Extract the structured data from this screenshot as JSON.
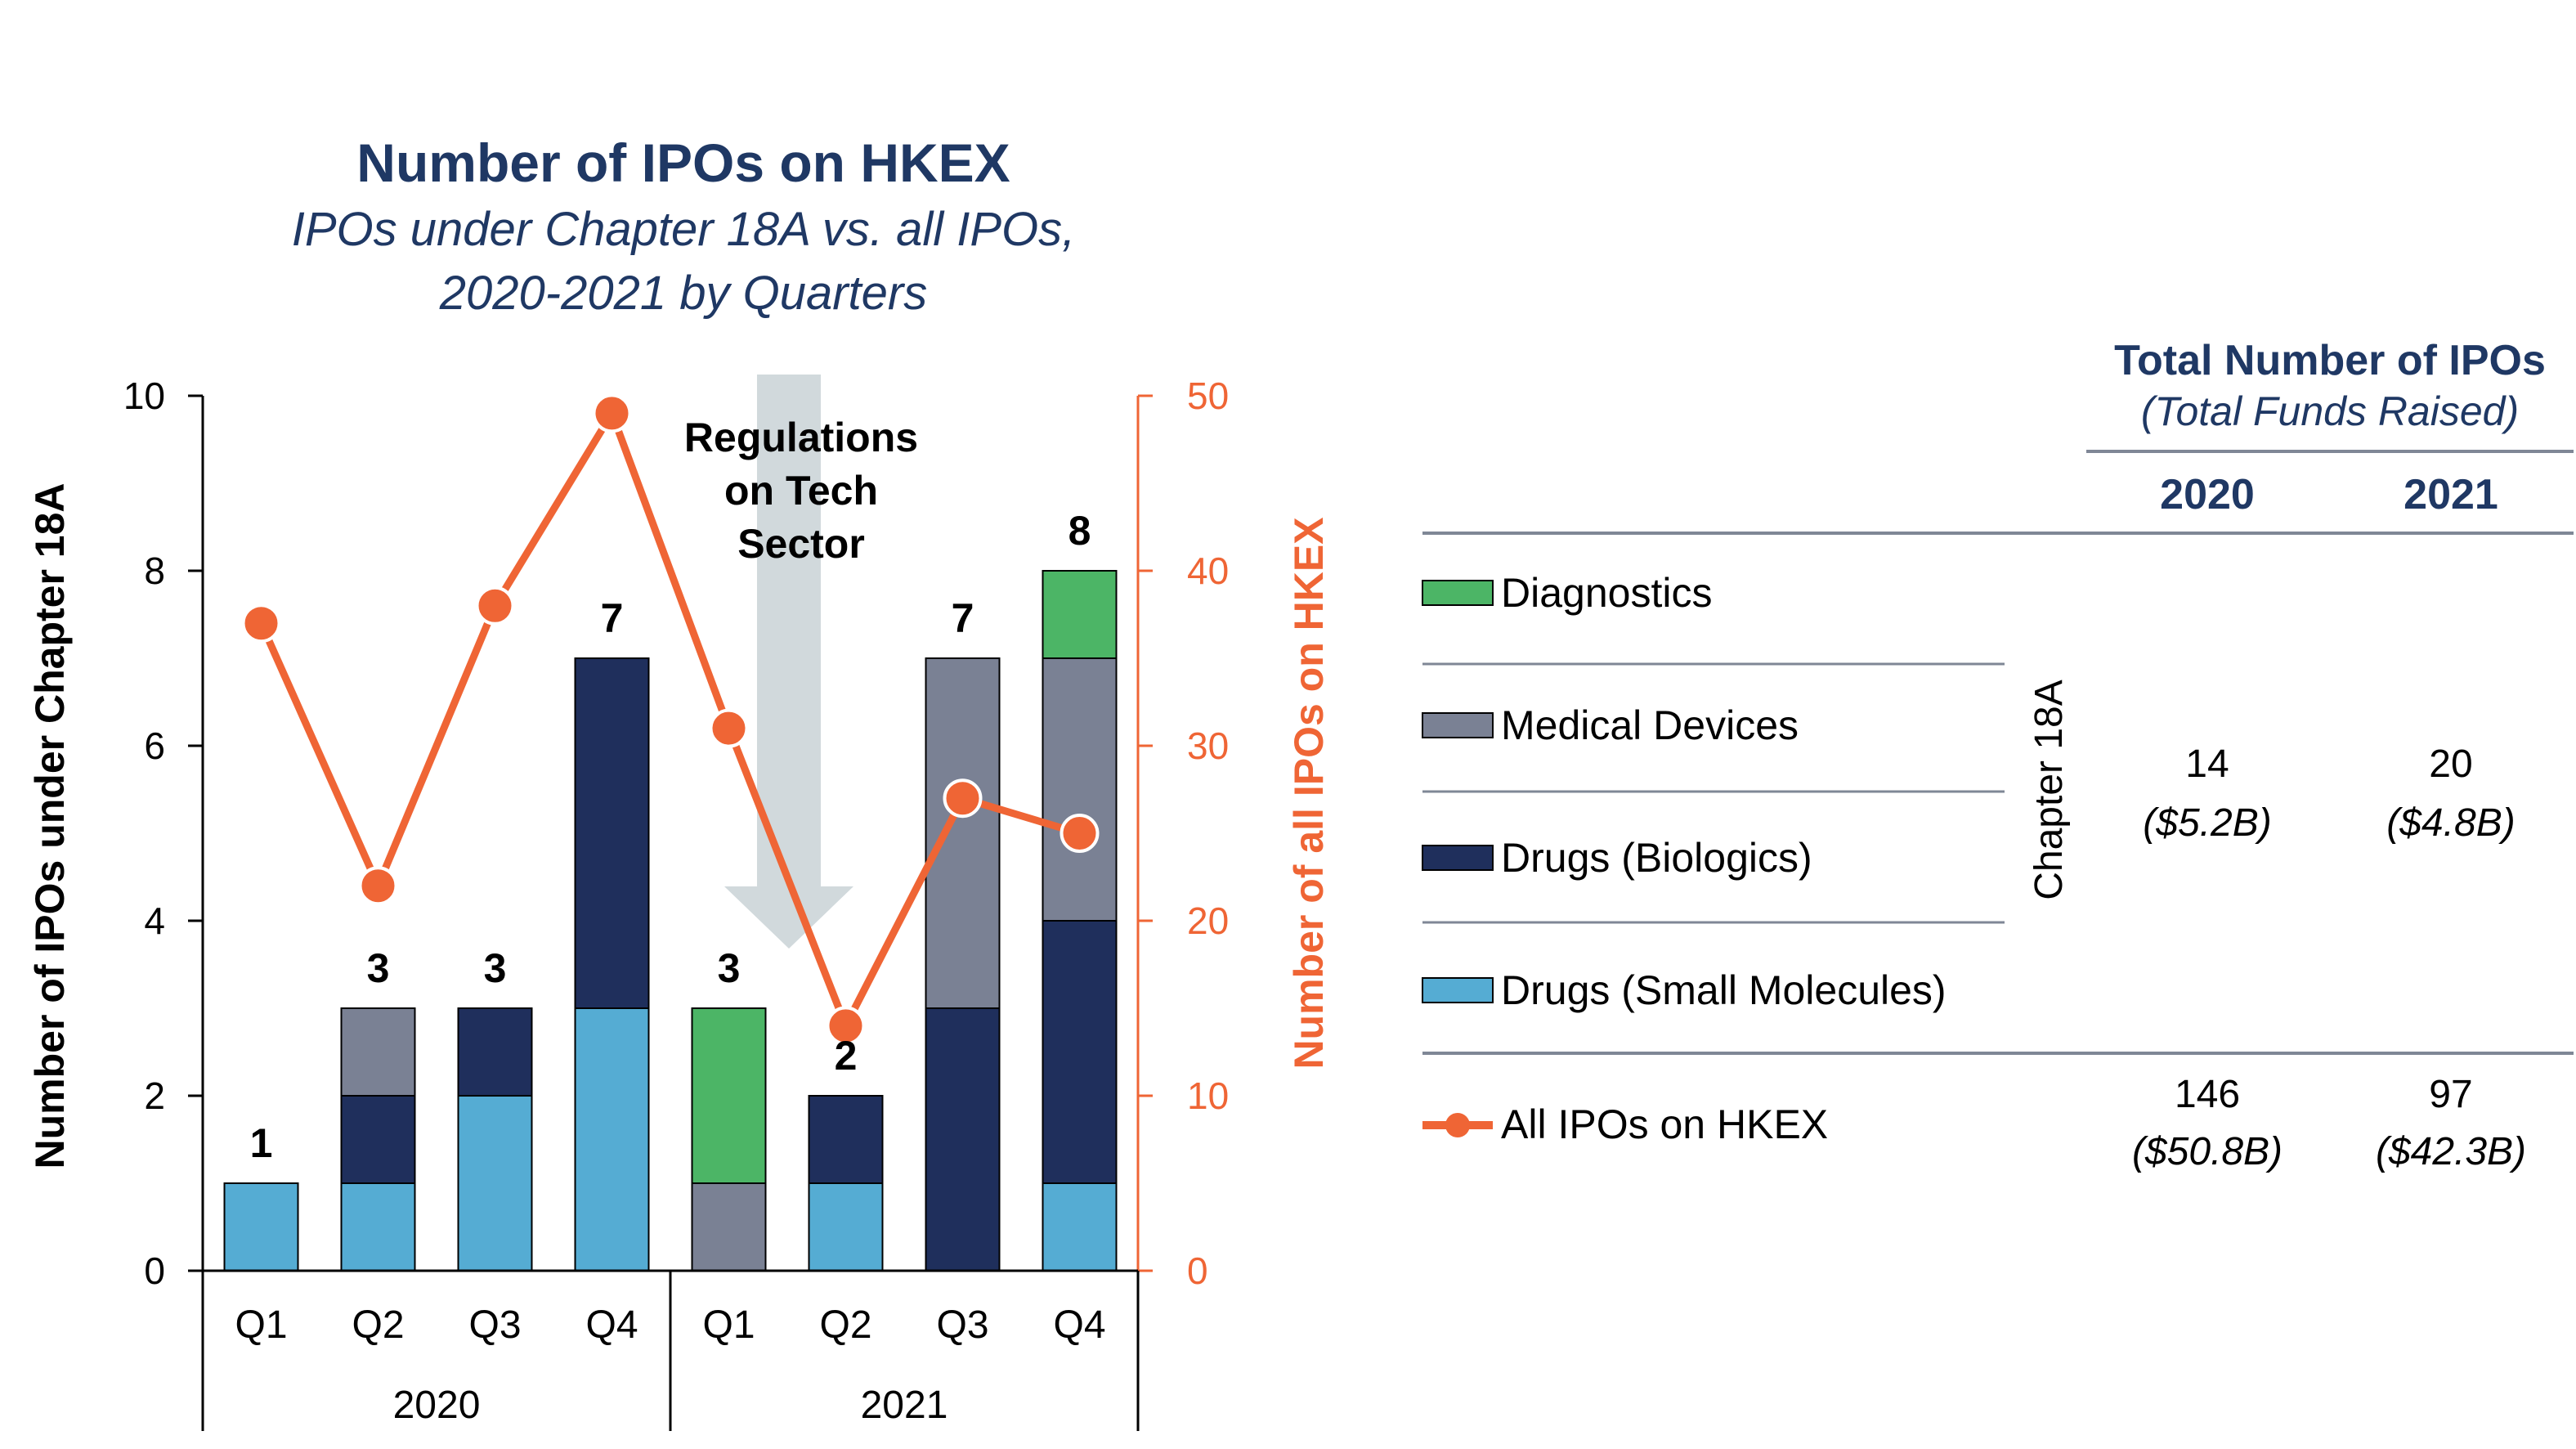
{
  "colors": {
    "diagnostics": "#4cb566",
    "medical_devices": "#7a8194",
    "drugs_biologics": "#1f2f5c",
    "drugs_small_molecules": "#55acd3",
    "all_ipos_line": "#ef6535",
    "title": "#1f3864",
    "arrow": "#d1d9dc"
  },
  "chart_data": {
    "type": "bar",
    "stacked": true,
    "title": "Number of IPOs on HKEX",
    "subtitle": [
      "IPOs under Chapter 18A vs. all IPOs,",
      "2020-2021 by Quarters"
    ],
    "categories": [
      "Q1",
      "Q2",
      "Q3",
      "Q4",
      "Q1",
      "Q2",
      "Q3",
      "Q4"
    ],
    "groups": [
      {
        "label": "2020",
        "span": [
          0,
          3
        ]
      },
      {
        "label": "2021",
        "span": [
          4,
          7
        ]
      }
    ],
    "ylabel": "Number of IPOs under Chapter 18A",
    "ylim": [
      0,
      10
    ],
    "yticks": [
      "0",
      "2",
      "4",
      "6",
      "8",
      "10"
    ],
    "y2label": "Number of all IPOs on HKEX",
    "y2lim": [
      0,
      50
    ],
    "y2ticks": [
      "0",
      "10",
      "20",
      "30",
      "40",
      "50"
    ],
    "series": [
      {
        "name": "Drugs (Small Molecules)",
        "color": "#55acd3",
        "values": [
          1,
          1,
          2,
          3,
          0,
          1,
          0,
          1
        ]
      },
      {
        "name": "Drugs (Biologics)",
        "color": "#1f2f5c",
        "values": [
          0,
          1,
          1,
          4,
          0,
          1,
          3,
          3
        ]
      },
      {
        "name": "Medical Devices",
        "color": "#7a8194",
        "values": [
          0,
          1,
          0,
          0,
          1,
          0,
          4,
          3
        ]
      },
      {
        "name": "Diagnostics",
        "color": "#4cb566",
        "values": [
          0,
          0,
          0,
          0,
          2,
          0,
          0,
          1
        ]
      }
    ],
    "totals": [
      "1",
      "3",
      "3",
      "7",
      "3",
      "2",
      "7",
      "8"
    ],
    "line_series": {
      "name": "All IPOs on HKEX",
      "axis": "right",
      "color": "#ef6535",
      "values": [
        37,
        22,
        38,
        49,
        31,
        14,
        27,
        25
      ]
    },
    "annotation": [
      "Regulations",
      "on Tech",
      "Sector"
    ],
    "grid": false
  },
  "table": {
    "header": "Total Number of IPOs",
    "subheader": "(Total Funds Raised)",
    "years": [
      "2020",
      "2021"
    ],
    "legend": [
      "Diagnostics",
      "Medical Devices",
      "Drugs (Biologics)",
      "Drugs (Small Molecules)"
    ],
    "group_label": "Chapter 18A",
    "chapter18a": {
      "count_2020": "14",
      "funds_2020": "($5.2B)",
      "count_2021": "20",
      "funds_2021": "($4.8B)"
    },
    "all_ipos": {
      "label": "All IPOs on HKEX",
      "count_2020": "146",
      "funds_2020": "($50.8B)",
      "count_2021": "97",
      "funds_2021": "($42.3B)"
    }
  }
}
